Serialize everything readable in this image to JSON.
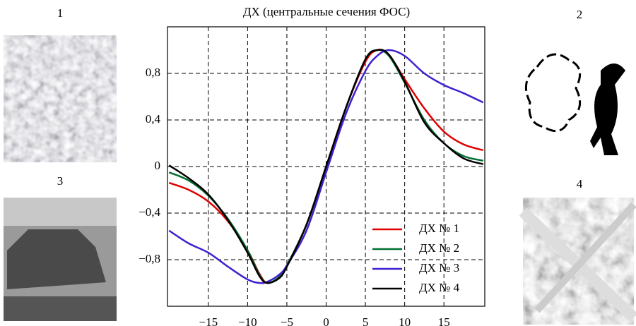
{
  "chart_data": {
    "type": "line",
    "title": "ДХ (центральные сечения ФОС)",
    "x": [
      -20,
      -17.5,
      -15,
      -12.5,
      -10,
      -8.5,
      -7.5,
      -6,
      -5,
      -2.5,
      0,
      2.5,
      5,
      6.5,
      8,
      10,
      12.5,
      15,
      17.5,
      20
    ],
    "series": [
      {
        "name": "ДХ № 1",
        "color": "#e00000",
        "values": [
          -0.14,
          -0.2,
          -0.3,
          -0.47,
          -0.72,
          -0.92,
          -1.0,
          -0.95,
          -0.85,
          -0.5,
          0,
          0.5,
          0.9,
          1.0,
          0.96,
          0.75,
          0.5,
          0.3,
          0.19,
          0.14
        ]
      },
      {
        "name": "ДХ № 2",
        "color": "#007030",
        "values": [
          -0.05,
          -0.12,
          -0.25,
          -0.45,
          -0.72,
          -0.93,
          -1.0,
          -0.95,
          -0.85,
          -0.5,
          -0.02,
          0.5,
          0.92,
          1.0,
          0.95,
          0.72,
          0.4,
          0.2,
          0.09,
          0.05
        ]
      },
      {
        "name": "ДХ № 3",
        "color": "#4020d0",
        "values": [
          -0.55,
          -0.66,
          -0.74,
          -0.86,
          -0.97,
          -1.0,
          -0.99,
          -0.93,
          -0.85,
          -0.55,
          -0.05,
          0.45,
          0.82,
          0.95,
          1.0,
          0.95,
          0.8,
          0.7,
          0.63,
          0.55
        ]
      },
      {
        "name": "ДХ № 4",
        "color": "#000000",
        "values": [
          0.01,
          -0.1,
          -0.24,
          -0.46,
          -0.74,
          -0.94,
          -1.0,
          -0.96,
          -0.86,
          -0.5,
          0,
          0.5,
          0.92,
          1.0,
          0.96,
          0.73,
          0.38,
          0.2,
          0.07,
          0.02
        ]
      }
    ],
    "xlim": [
      -20.2,
      20.2
    ],
    "xticks": [
      {
        "value": -15,
        "label": "−15"
      },
      {
        "value": -10,
        "label": "−10"
      },
      {
        "value": -5,
        "label": "−5"
      },
      0,
      5,
      10,
      15
    ],
    "ylim": [
      -1.2,
      1.2
    ],
    "yticks": [
      {
        "value": -0.8,
        "label": "−0,8"
      },
      {
        "value": -0.4,
        "label": "−0,4"
      },
      0,
      {
        "value": 0.4,
        "label": "0,4"
      },
      {
        "value": 0.8,
        "label": "0,8"
      }
    ],
    "grid": true,
    "legend": "lower right"
  },
  "image_labels": [
    "1",
    "2",
    "3",
    "4"
  ]
}
